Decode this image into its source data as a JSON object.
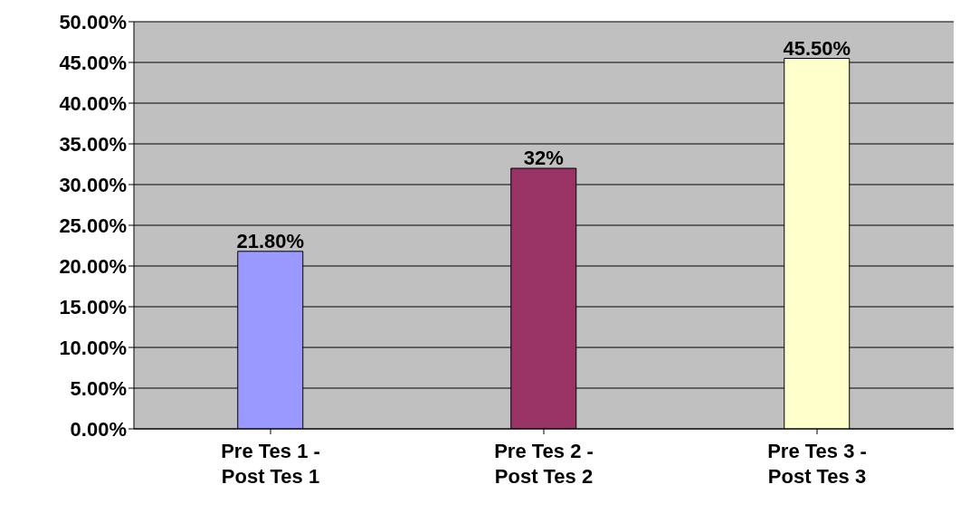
{
  "chart_data": {
    "type": "bar",
    "categories": [
      "Pre Tes 1 - Post Tes 1",
      "Pre Tes 2 - Post Tes 2",
      "Pre Tes 3 - Post Tes 3"
    ],
    "values": [
      21.8,
      32,
      45.5
    ],
    "colors": [
      "#9999ff",
      "#993366",
      "#ffffcc"
    ],
    "value_labels": [
      "21.80%",
      "32%",
      "45.50%"
    ],
    "ylim": [
      0,
      50
    ],
    "yticks": [
      {
        "value": 0,
        "label": "0.00%"
      },
      {
        "value": 5,
        "label": "5.00%"
      },
      {
        "value": 10,
        "label": "10.00%"
      },
      {
        "value": 15,
        "label": "15.00%"
      },
      {
        "value": 20,
        "label": "20.00%"
      },
      {
        "value": 25,
        "label": "25.00%"
      },
      {
        "value": 30,
        "label": "30.00%"
      },
      {
        "value": 35,
        "label": "35.00%"
      },
      {
        "value": 40,
        "label": "40.00%"
      },
      {
        "value": 45,
        "label": "45.00%"
      },
      {
        "value": 50,
        "label": "50.00%"
      }
    ],
    "grid": "y"
  }
}
